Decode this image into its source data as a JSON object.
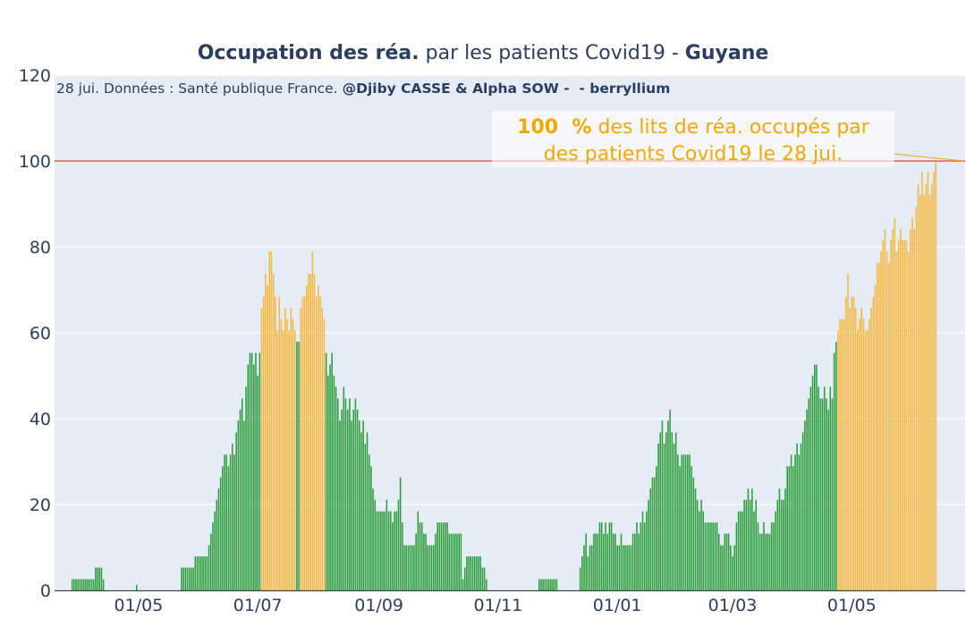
{
  "title": {
    "bold_1": "Occupation des réa.",
    "part_2": " par les patients Covid19 - ",
    "bold_3": "Guyane"
  },
  "source": {
    "part_1": "28 jui. Données : Santé publique France. ",
    "bold_2": "@Djiby CASSE & Alpha SOW -  - berryllium"
  },
  "annotation": {
    "value": "100  %",
    "line_1_rest": " des lits de réa. occupés par",
    "line_2": "des patients Covid19 le 28 jui."
  },
  "chart_data": {
    "type": "bar",
    "title": "Occupation des réa. par les patients Covid19 - Guyane",
    "xlabel": "",
    "ylabel": "",
    "x_range": [
      "2020-03-19",
      "2021-06-28"
    ],
    "ylim": [
      0,
      120
    ],
    "y_ticks": [
      0,
      20,
      40,
      60,
      80,
      100,
      120
    ],
    "x_ticks": [
      {
        "date": "2020-05-01",
        "label": "01/05"
      },
      {
        "date": "2020-07-01",
        "label": "01/07"
      },
      {
        "date": "2020-09-01",
        "label": "01/09"
      },
      {
        "date": "2020-11-01",
        "label": "01/11"
      },
      {
        "date": "2021-01-01",
        "label": "01/01"
      },
      {
        "date": "2021-03-01",
        "label": "01/03"
      },
      {
        "date": "2021-05-01",
        "label": "01/05"
      }
    ],
    "reference_line": {
      "y": 100,
      "color": "#e8584f"
    },
    "colors": {
      "normal": "#2e9e3e",
      "high": "#f5b942",
      "plot_bg": "#e5ecf6",
      "grid": "#ffffff"
    },
    "high_threshold": 60,
    "grid": true,
    "segments": [
      {
        "start": "2020-03-28",
        "values": [
          2.6,
          2.6,
          2.6,
          2.6,
          2.6,
          2.6,
          2.6,
          2.6,
          2.6,
          2.6,
          2.6,
          2.6,
          5.3,
          5.3,
          5.3,
          5.3,
          2.6
        ]
      },
      {
        "start": "2020-04-30",
        "values": [
          1.3
        ]
      },
      {
        "start": "2020-05-23",
        "values": [
          5.3,
          5.3,
          5.3,
          5.3,
          5.3,
          5.3,
          5.3,
          7.9,
          7.9,
          7.9,
          7.9,
          7.9,
          7.9,
          7.9,
          10.5,
          13.2,
          15.8,
          18.4,
          21.1,
          23.7,
          26.3,
          28.9,
          31.6,
          31.6,
          28.9,
          31.6,
          34.2,
          31.6,
          36.8,
          39.5,
          42.1,
          44.7,
          39.5,
          47.4,
          52.6,
          55.3,
          55.3,
          52.6,
          55.3,
          50.0,
          55.3,
          65.8,
          68.4,
          73.7,
          71.1,
          78.9,
          78.9,
          73.7,
          68.4,
          60.5,
          68.4,
          63.2,
          60.5,
          65.8,
          63.2,
          60.5,
          65.8,
          63.2,
          60.5,
          57.9,
          57.9,
          65.8,
          68.4,
          68.4,
          71.1,
          73.7,
          73.7,
          78.9,
          73.7,
          68.4,
          71.1,
          68.4,
          65.8,
          63.2,
          55.3,
          50.0,
          52.6,
          55.3,
          50.0,
          47.4,
          44.7,
          39.5,
          42.1,
          47.4,
          44.7,
          42.1,
          44.7,
          39.5,
          42.1,
          44.7,
          42.1,
          39.5,
          36.8,
          39.5,
          34.2,
          36.8,
          31.6,
          28.9,
          23.7,
          21.1,
          18.4,
          18.4,
          18.4,
          18.4,
          18.4,
          21.1,
          18.4,
          18.4,
          15.8,
          18.4,
          18.4,
          21.1,
          26.3,
          15.8,
          10.5,
          10.5,
          10.5,
          10.5,
          10.5,
          10.5,
          13.2,
          18.4,
          15.8,
          15.8,
          13.2,
          13.2,
          10.5,
          10.5,
          10.5,
          10.5,
          13.2,
          15.8,
          15.8,
          15.8,
          15.8,
          15.8,
          15.8,
          13.2,
          13.2,
          13.2,
          13.2,
          13.2,
          13.2,
          13.2,
          2.6,
          5.3,
          7.9,
          7.9,
          7.9,
          7.9,
          7.9,
          7.9,
          7.9,
          7.9,
          5.3,
          5.3,
          2.6
        ]
      },
      {
        "start": "2020-11-22",
        "values": [
          2.6,
          2.6,
          2.6,
          2.6,
          2.6,
          2.6,
          2.6,
          2.6,
          2.6,
          2.6
        ]
      },
      {
        "start": "2020-12-13",
        "values": [
          5.3,
          7.9,
          10.5,
          13.2,
          7.9,
          10.5,
          10.5,
          13.2,
          13.2,
          13.2,
          15.8,
          15.8,
          13.2,
          15.8,
          13.2,
          15.8,
          15.8,
          13.2,
          13.2,
          10.5,
          10.5,
          13.2,
          10.5,
          10.5,
          10.5,
          10.5,
          10.5,
          13.2,
          13.2,
          15.8,
          13.2,
          15.8,
          18.4,
          15.8,
          18.4,
          21.1,
          23.7,
          26.3,
          26.3,
          28.9,
          34.2,
          36.8,
          39.5,
          34.2,
          36.8,
          39.5,
          42.1,
          36.8,
          34.2,
          36.8,
          31.6,
          28.9,
          31.6,
          31.6,
          31.6,
          31.6,
          31.6,
          28.9,
          26.3,
          23.7,
          21.1,
          18.4,
          21.1,
          18.4,
          15.8,
          15.8,
          15.8,
          15.8,
          15.8,
          15.8,
          15.8,
          13.2,
          10.5,
          10.5,
          13.2,
          13.2,
          13.2,
          10.5,
          7.9,
          10.5,
          15.8,
          18.4,
          18.4,
          18.4,
          21.1,
          21.1,
          23.7,
          21.1,
          23.7,
          18.4,
          21.1,
          15.8,
          13.2,
          13.2,
          15.8,
          13.2,
          13.2,
          13.2,
          15.8,
          15.8,
          18.4,
          21.1,
          23.7,
          21.1,
          21.1,
          23.7,
          28.9,
          28.9,
          31.6,
          28.9,
          31.6,
          34.2,
          31.6,
          34.2,
          36.8,
          39.5,
          42.1,
          44.7,
          47.4,
          50.0,
          52.6,
          52.6,
          47.4,
          44.7,
          44.7,
          47.4,
          44.7,
          42.1,
          47.4,
          44.7,
          55.3,
          57.9,
          60.5,
          63.2,
          63.2,
          63.2,
          68.4,
          73.7,
          65.8,
          68.4,
          68.4,
          65.8,
          60.5,
          63.2,
          65.8,
          63.2,
          60.5,
          60.5,
          63.2,
          65.8,
          68.4,
          71.1,
          76.3,
          76.3,
          78.9,
          81.6,
          84.2,
          78.9,
          76.3,
          81.6,
          84.2,
          86.8,
          78.9,
          81.6,
          84.2,
          81.6,
          81.6,
          81.6,
          78.9,
          84.2,
          86.8,
          84.2,
          89.5,
          94.7,
          92.1,
          97.4,
          92.1,
          94.7,
          97.4,
          92.1,
          94.7,
          97.4,
          100.0
        ]
      }
    ]
  }
}
